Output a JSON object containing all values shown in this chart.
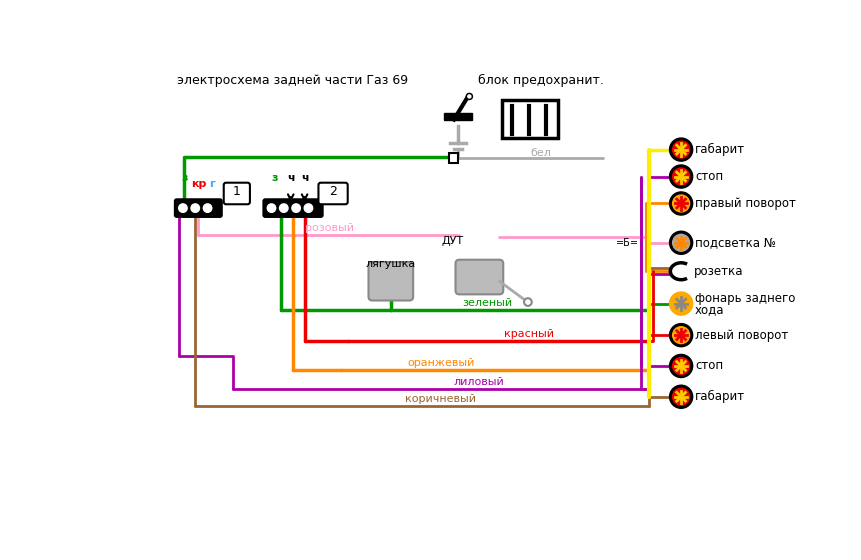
{
  "title": "электросхема задней части Газ 69",
  "fuse_label": "блок предохранит.",
  "bg": "#ffffff",
  "green": "#009900",
  "red": "#ee0000",
  "orange": "#ff8800",
  "purple": "#aa00aa",
  "brown": "#996633",
  "pink": "#ff99cc",
  "yellow": "#ffee00",
  "gray": "#aaaaaa",
  "black": "#000000",
  "blue": "#44aaff",
  "white_wire": "#aaaaaa",
  "right_labels": [
    "габарит",
    "стоп",
    "правый поворот",
    "подсветка №",
    "розетка",
    "фонарь заднего\nхода",
    "левый поворот",
    "стоп",
    "габарит"
  ],
  "conn1_labels": [
    [
      "з",
      "#009900"
    ],
    [
      "кр",
      "#ee0000"
    ],
    [
      "г",
      "#44aaff"
    ]
  ],
  "conn2_labels": [
    [
      "з",
      "#009900"
    ],
    [
      "ч",
      "#000000"
    ],
    [
      "ч",
      "#000000"
    ]
  ]
}
